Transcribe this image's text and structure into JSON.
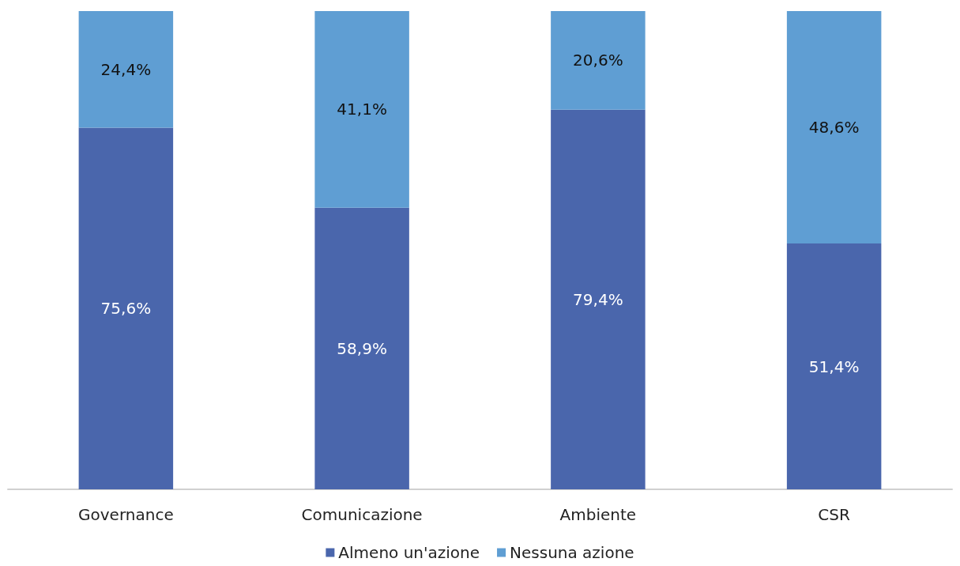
{
  "chart_data": {
    "type": "bar",
    "stacked": true,
    "categories": [
      "Governance",
      "Comunicazione",
      "Ambiente",
      "CSR"
    ],
    "ylim": [
      0,
      100
    ],
    "grid": false,
    "legend": "bottom",
    "tick_labels": "x",
    "series": [
      {
        "name": "Almeno un'azione",
        "color": "#4a66ac",
        "values": [
          75.6,
          58.9,
          79.4,
          51.4
        ],
        "value_labels": [
          "75,6%",
          "58,9%",
          "79,4%",
          "51,4%"
        ]
      },
      {
        "name": "Nessuna azione",
        "color": "#5f9ed3",
        "values": [
          24.4,
          41.1,
          20.6,
          48.6
        ],
        "value_labels": [
          "24,4%",
          "41,1%",
          "20,6%",
          "48,6%"
        ]
      }
    ]
  }
}
